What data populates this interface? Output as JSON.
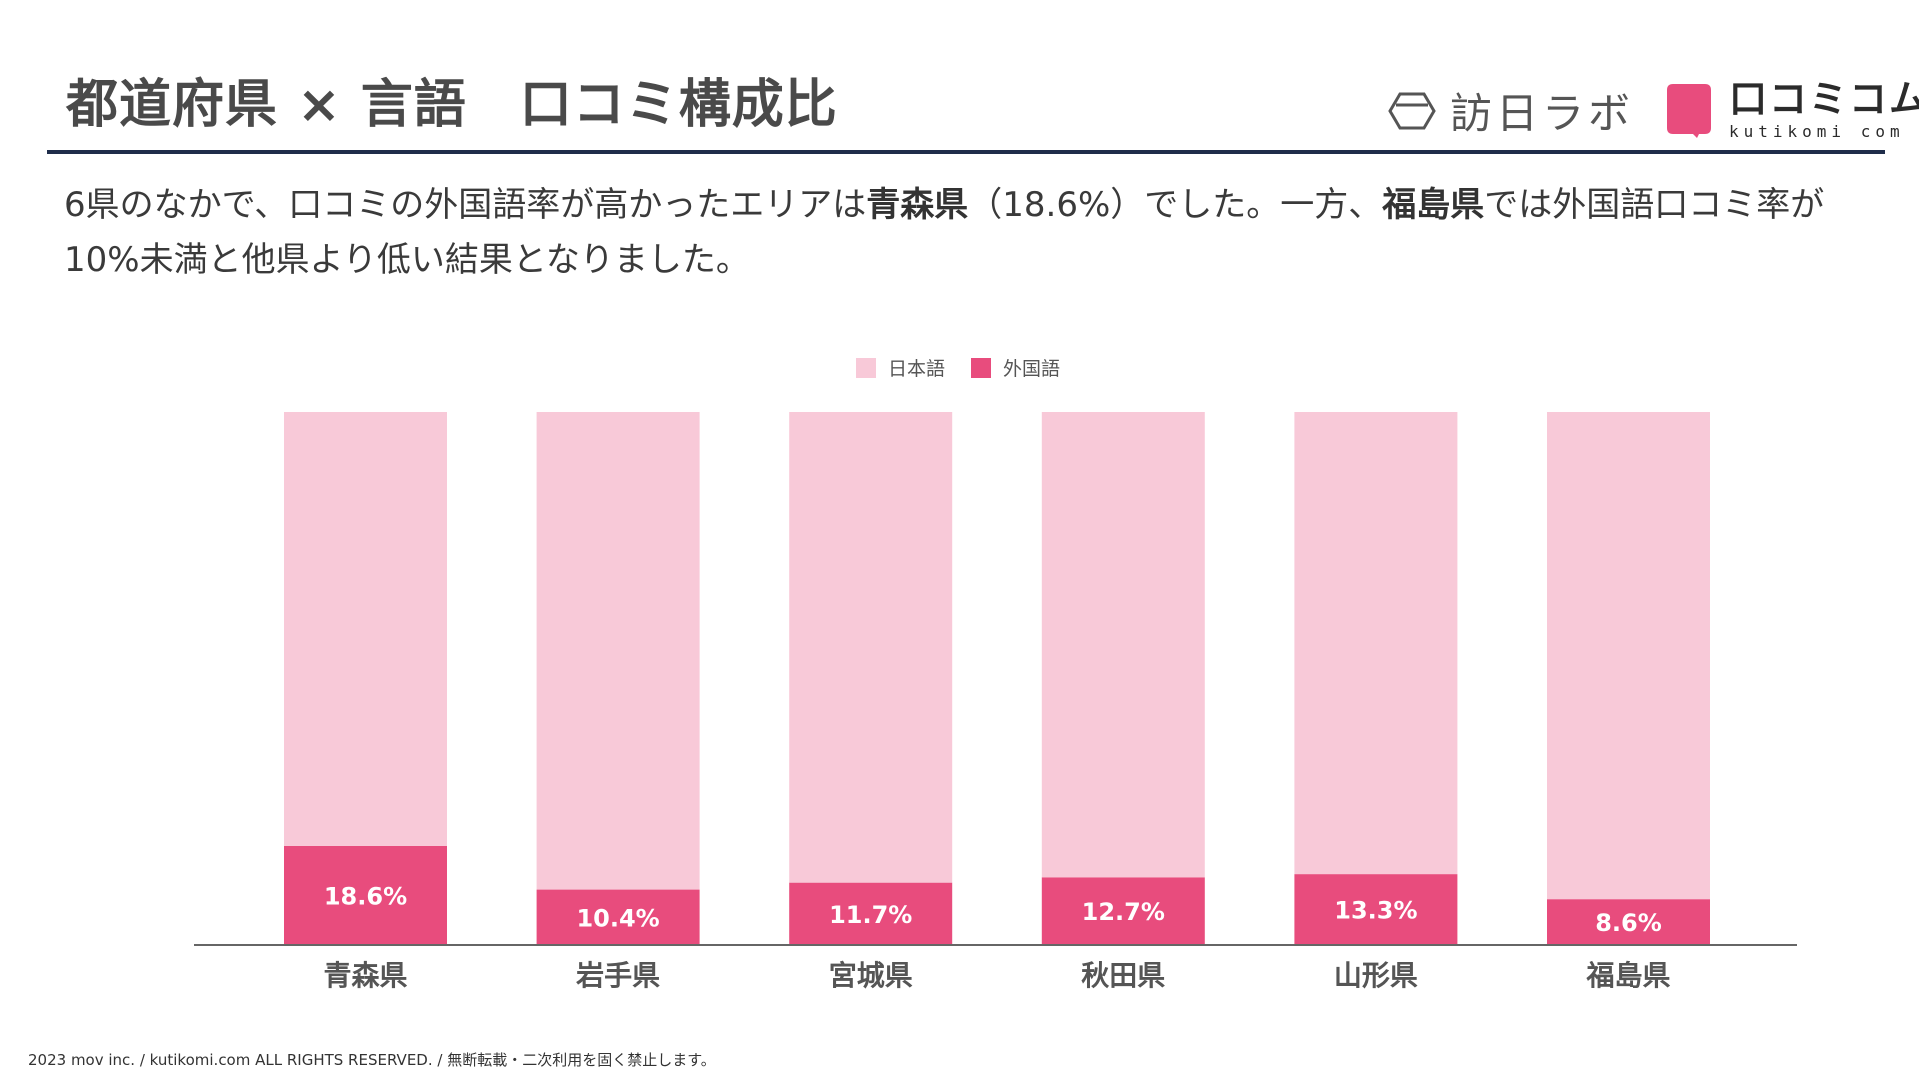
{
  "title": "都道府県 × 言語　口コミ構成比",
  "logos": {
    "houjin": {
      "name": "訪日ラボ",
      "icon": "hexagon-logo-icon"
    },
    "kutikomi": {
      "name_jp": "口コミコム",
      "name_en": "kutikomi com",
      "icon": "speech-bubble-logo-icon",
      "color": "#e84c7d"
    }
  },
  "summary": {
    "part1": "6県のなかで、口コミの外国語率が高かったエリアは",
    "highlight1": "青森県",
    "part2": "（18.6%）でした。一方、",
    "highlight2": "福島県",
    "part3": "では外国語口コミ率が10%未満と他県より低い結果となりました。"
  },
  "footer": "2023 mov inc. / kutikomi.com ALL RIGHTS RESERVED. / 無断転載・二次利用を固く禁止します。",
  "colors": {
    "japanese": "#f8c9d8",
    "foreign": "#e84c7d",
    "rule": "#1f2d4a",
    "axis": "#666666"
  },
  "chart_data": {
    "type": "bar",
    "stacked": true,
    "categories": [
      "青森県",
      "岩手県",
      "宮城県",
      "秋田県",
      "山形県",
      "福島県"
    ],
    "series": [
      {
        "name": "日本語",
        "values": [
          81.4,
          89.6,
          88.3,
          87.3,
          86.7,
          91.4
        ],
        "color": "#f8c9d8"
      },
      {
        "name": "外国語",
        "values": [
          18.6,
          10.4,
          11.7,
          12.7,
          13.3,
          8.6
        ],
        "color": "#e84c7d"
      }
    ],
    "data_labels": [
      "18.6%",
      "10.4%",
      "11.7%",
      "12.7%",
      "13.3%",
      "8.6%"
    ],
    "ylim": [
      0,
      100
    ],
    "legend": "top-center",
    "grid": false
  }
}
